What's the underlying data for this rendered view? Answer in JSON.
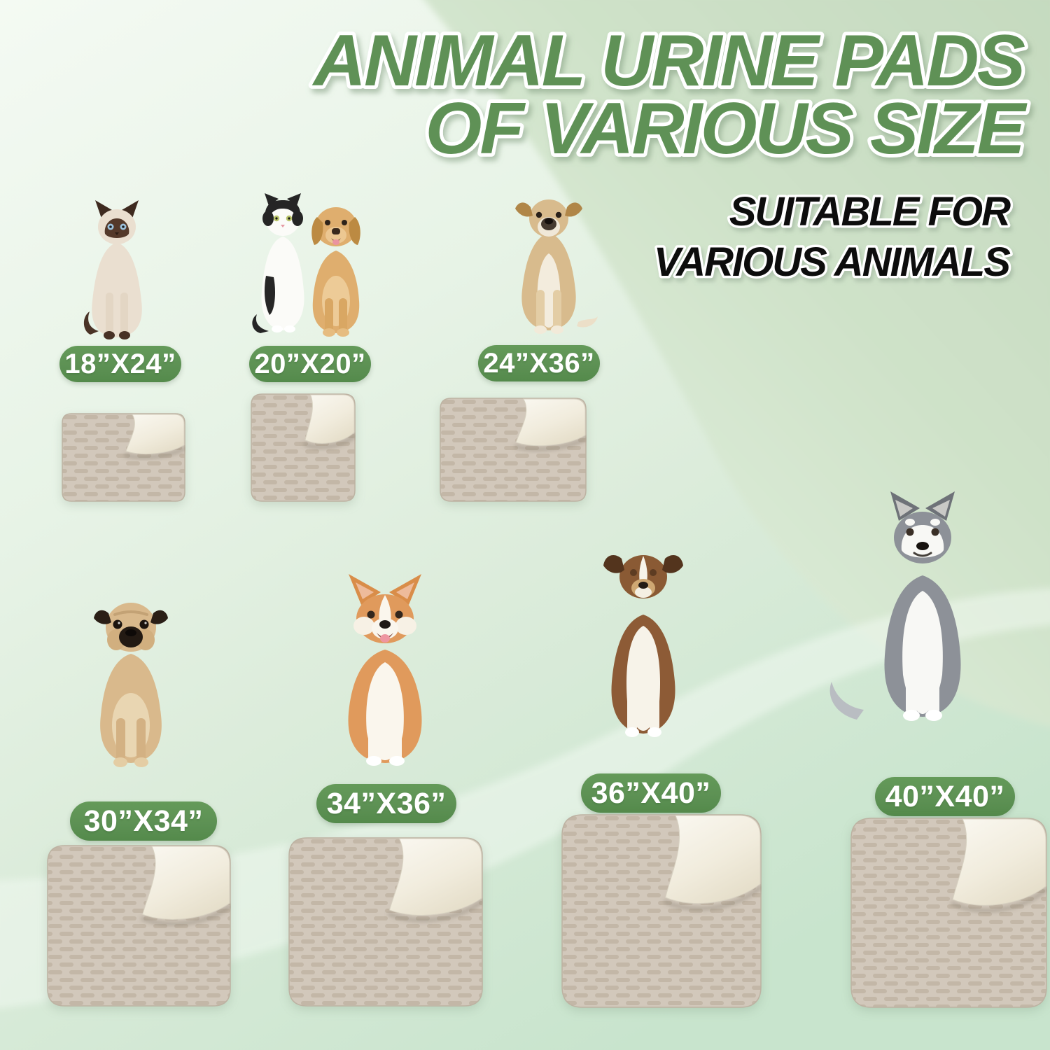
{
  "title": {
    "line1": "ANIMAL URINE PADS",
    "line2": "OF VARIOUS SIZE"
  },
  "subtitle": {
    "line1": "SUITABLE FOR",
    "line2": "VARIOUS ANIMALS"
  },
  "pads": [
    {
      "size_label": "18”X24”",
      "animal": "siamese-cat"
    },
    {
      "size_label": "20”X20”",
      "animal": "tuxedo-cat-and-labrador-puppy"
    },
    {
      "size_label": "24”X36”",
      "animal": "tan-dog"
    },
    {
      "size_label": "30”X34”",
      "animal": "pug"
    },
    {
      "size_label": "34”X36”",
      "animal": "corgi"
    },
    {
      "size_label": "36”X40”",
      "animal": "australian-shepherd"
    },
    {
      "size_label": "40”X40”",
      "animal": "siberian-husky"
    }
  ],
  "colors": {
    "title_green": "#5f9156",
    "badge_green": "#5d9154",
    "subtitle_black": "#101010",
    "background_mint_light": "#f4faf3",
    "background_mint_deep": "#c8e4cd",
    "background_sage": "#c5dabf",
    "pad_top_beige": "#d2c8bb",
    "pad_texture_dash": "#c3b7a7",
    "pad_underside_cream": "#f6f3ea"
  }
}
